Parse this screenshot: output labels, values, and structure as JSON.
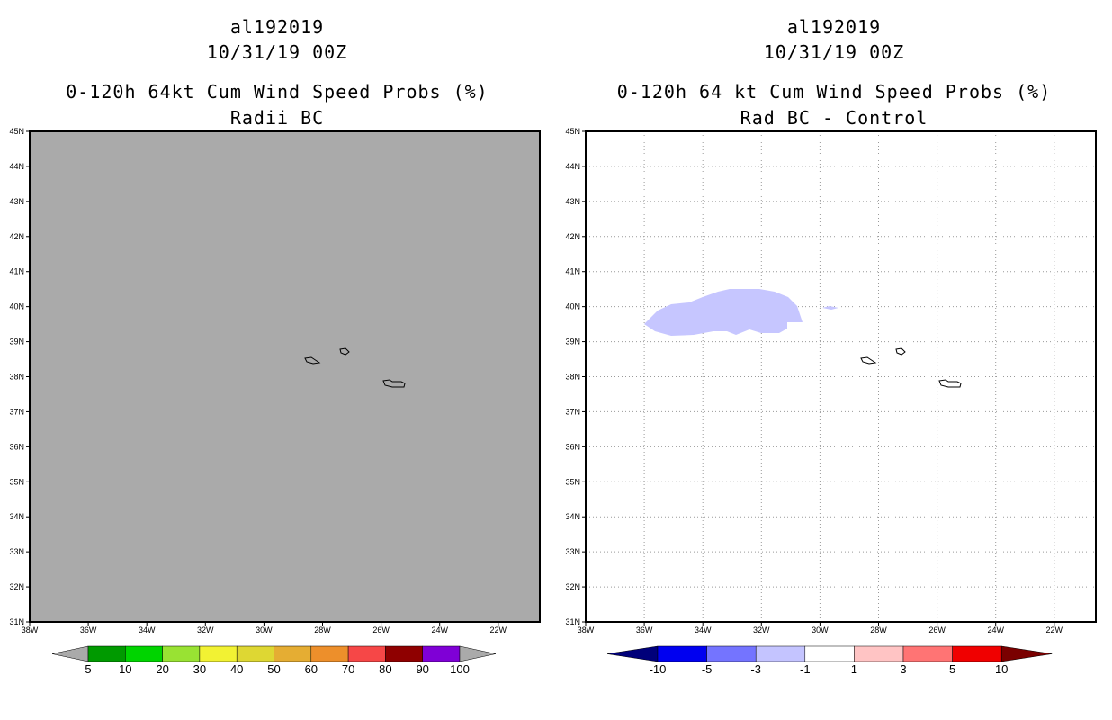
{
  "left_panel": {
    "storm_id": "al192019",
    "date": "10/31/19 00Z",
    "title": "0-120h 64kt Cum Wind Speed Probs (%)",
    "subtitle": "Radii BC",
    "background_color": "#aaaaaa",
    "colorbar": {
      "labels": [
        "5",
        "10",
        "20",
        "30",
        "40",
        "50",
        "60",
        "70",
        "80",
        "90",
        "100"
      ],
      "colors": [
        "#009a00",
        "#00d400",
        "#99e233",
        "#f2f233",
        "#ded733",
        "#e5ad33",
        "#ed8f2b",
        "#f64747",
        "#8f0000",
        "#7f00d6"
      ],
      "end_color": "#aaaaaa"
    }
  },
  "right_panel": {
    "storm_id": "al192019",
    "date": "10/31/19 00Z",
    "title": "0-120h 64 kt Cum Wind Speed Probs (%)",
    "subtitle": "Rad BC - Control",
    "background_color": "#ffffff",
    "colorbar": {
      "labels": [
        "-10",
        "-5",
        "-3",
        "-1",
        "1",
        "3",
        "5",
        "10"
      ],
      "colors": [
        "#0000f0",
        "#7474ff",
        "#c4c4ff",
        "#ffffff",
        "#ffc4c4",
        "#ff7474",
        "#f00000"
      ],
      "left_end_color": "#00007a",
      "right_end_color": "#7a0000"
    },
    "shaded_region_color": "#c6c6ff"
  },
  "axes": {
    "lat_labels": [
      "45N",
      "44N",
      "43N",
      "42N",
      "41N",
      "40N",
      "39N",
      "38N",
      "37N",
      "36N",
      "35N",
      "34N",
      "33N",
      "32N",
      "31N"
    ],
    "lon_labels": [
      "38W",
      "36W",
      "34W",
      "32W",
      "30W",
      "28W",
      "26W",
      "24W",
      "22W"
    ]
  }
}
